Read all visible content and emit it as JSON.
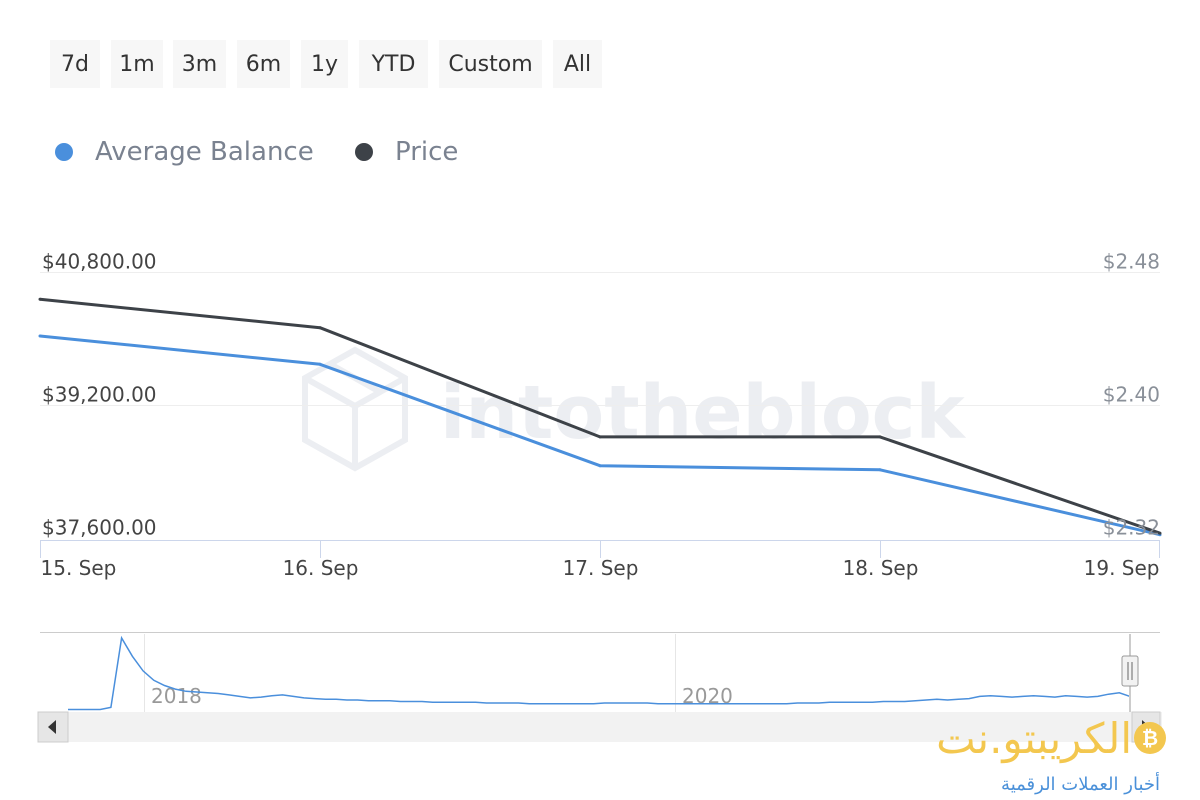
{
  "range_selector": {
    "buttons": [
      "7d",
      "1m",
      "3m",
      "6m",
      "1y",
      "YTD",
      "Custom",
      "All"
    ]
  },
  "legend": [
    {
      "label": "Average Balance",
      "color": "#4a8fdc"
    },
    {
      "label": "Price",
      "color": "#3d4248"
    }
  ],
  "watermark": "intotheblock",
  "chart_data": {
    "type": "line",
    "categories": [
      "15. Sep",
      "16. Sep",
      "17. Sep",
      "18. Sep",
      "19. Sep"
    ],
    "series": [
      {
        "name": "Average Balance",
        "axis": "left",
        "color": "#4a8fdc",
        "values": [
          40030,
          39690,
          38470,
          38420,
          37640
        ]
      },
      {
        "name": "Price",
        "axis": "right",
        "color": "#3d4248",
        "values": [
          2.4636,
          2.4465,
          2.3808,
          2.3808,
          2.3229
        ]
      }
    ],
    "y_left": {
      "ticks": [
        "$40,800.00",
        "$39,200.00",
        "$37,600.00"
      ],
      "values": [
        40800,
        39200,
        37600
      ],
      "ylim": [
        37600,
        40800
      ]
    },
    "y_right": {
      "ticks": [
        "$2.48",
        "$2.40",
        "$2.32"
      ],
      "values": [
        2.48,
        2.4,
        2.32
      ],
      "ylim": [
        2.32,
        2.48
      ]
    },
    "grid": true,
    "legend_position": "top-left"
  },
  "navigator": {
    "year_labels": [
      "2018",
      "2020"
    ],
    "series_color": "#4a8fdc",
    "values": [
      0.02,
      0.02,
      0.02,
      0.02,
      0.05,
      1.0,
      0.75,
      0.55,
      0.42,
      0.35,
      0.3,
      0.27,
      0.26,
      0.25,
      0.24,
      0.22,
      0.2,
      0.18,
      0.19,
      0.21,
      0.22,
      0.2,
      0.18,
      0.17,
      0.16,
      0.16,
      0.15,
      0.15,
      0.14,
      0.14,
      0.14,
      0.13,
      0.13,
      0.13,
      0.12,
      0.12,
      0.12,
      0.12,
      0.12,
      0.11,
      0.11,
      0.11,
      0.11,
      0.1,
      0.1,
      0.1,
      0.1,
      0.1,
      0.1,
      0.1,
      0.11,
      0.11,
      0.11,
      0.11,
      0.11,
      0.1,
      0.1,
      0.1,
      0.1,
      0.1,
      0.1,
      0.1,
      0.1,
      0.1,
      0.1,
      0.1,
      0.1,
      0.1,
      0.11,
      0.11,
      0.11,
      0.12,
      0.12,
      0.12,
      0.12,
      0.12,
      0.13,
      0.13,
      0.13,
      0.14,
      0.15,
      0.16,
      0.15,
      0.16,
      0.17,
      0.2,
      0.21,
      0.2,
      0.19,
      0.2,
      0.21,
      0.2,
      0.19,
      0.21,
      0.2,
      0.19,
      0.2,
      0.23,
      0.25,
      0.2
    ]
  },
  "logo": {
    "title": "الكريبتو.نت",
    "subtitle": "أخبار العملات الرقمية",
    "coin": "₿"
  }
}
